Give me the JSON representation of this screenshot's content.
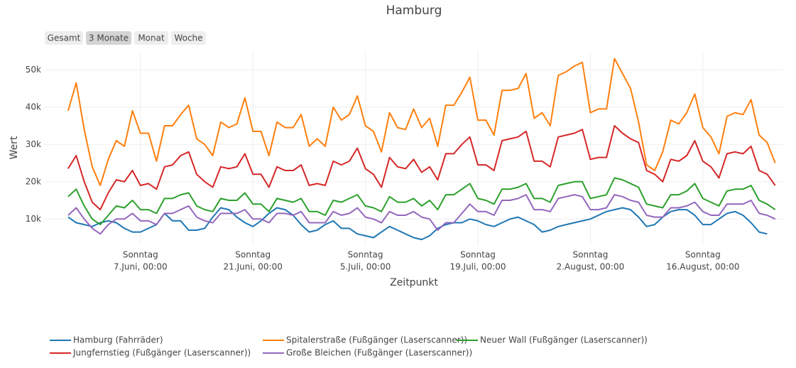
{
  "chart_data": {
    "type": "line",
    "title": "Hamburg",
    "buttons": [
      "Gesamt",
      "3 Monate",
      "Monat",
      "Woche"
    ],
    "active_button": 1,
    "x_label": "Zeitpunkt",
    "y_label": "Wert",
    "x": [
      "05-29",
      "05-30",
      "05-31",
      "06-01",
      "06-02",
      "06-03",
      "06-04",
      "06-05",
      "06-06",
      "06-07",
      "06-08",
      "06-09",
      "06-10",
      "06-11",
      "06-12",
      "06-13",
      "06-14",
      "06-15",
      "06-16",
      "06-17",
      "06-18",
      "06-19",
      "06-20",
      "06-21",
      "06-22",
      "06-23",
      "06-24",
      "06-25",
      "06-26",
      "06-27",
      "06-28",
      "06-29",
      "06-30",
      "07-01",
      "07-02",
      "07-03",
      "07-04",
      "07-05",
      "07-06",
      "07-07",
      "07-08",
      "07-09",
      "07-10",
      "07-11",
      "07-12",
      "07-13",
      "07-14",
      "07-15",
      "07-16",
      "07-17",
      "07-18",
      "07-19",
      "07-20",
      "07-21",
      "07-22",
      "07-23",
      "07-24",
      "07-25",
      "07-26",
      "07-27",
      "07-28",
      "07-29",
      "07-30",
      "07-31",
      "08-01",
      "08-02",
      "08-03",
      "08-04",
      "08-05",
      "08-06",
      "08-07",
      "08-08",
      "08-09",
      "08-10",
      "08-11",
      "08-12",
      "08-13",
      "08-14",
      "08-15",
      "08-16",
      "08-17",
      "08-18",
      "08-19",
      "08-20",
      "08-21",
      "08-22",
      "08-23",
      "08-24",
      "08-25"
    ],
    "xlim": [
      "05-26",
      "08-26"
    ],
    "xticks": [
      {
        "value": "06-07",
        "label": [
          "Sonntag",
          "7.Juni, 00:00"
        ]
      },
      {
        "value": "06-21",
        "label": [
          "Sonntag",
          "21.Juni, 00:00"
        ]
      },
      {
        "value": "07-05",
        "label": [
          "Sonntag",
          "5.Juli, 00:00"
        ]
      },
      {
        "value": "07-19",
        "label": [
          "Sonntag",
          "19.Juli, 00:00"
        ]
      },
      {
        "value": "08-02",
        "label": [
          "Sonntag",
          "2.August, 00:00"
        ]
      },
      {
        "value": "08-16",
        "label": [
          "Sonntag",
          "16.August, 00:00"
        ]
      }
    ],
    "ylim": [
      3000,
      55000
    ],
    "yticks": [
      {
        "value": 10000,
        "label": "10k"
      },
      {
        "value": 20000,
        "label": "20k"
      },
      {
        "value": 30000,
        "label": "30k"
      },
      {
        "value": 40000,
        "label": "40k"
      },
      {
        "value": 50000,
        "label": "50k"
      }
    ],
    "grid": true,
    "legend": "bottom",
    "series": [
      {
        "name": "Hamburg (Fahrräder)",
        "color": "#1f77b4",
        "values": [
          10500,
          9000,
          8500,
          8000,
          9000,
          9500,
          9000,
          7500,
          6500,
          6500,
          7500,
          8500,
          11500,
          9500,
          9500,
          7000,
          7000,
          7500,
          10500,
          13000,
          12500,
          10500,
          9000,
          8000,
          9500,
          11500,
          13000,
          12500,
          11000,
          8500,
          6500,
          7000,
          8500,
          9500,
          7500,
          7500,
          6000,
          5500,
          5000,
          6500,
          8000,
          7000,
          6000,
          5000,
          4500,
          5500,
          7500,
          8500,
          9000,
          9000,
          10000,
          9500,
          8500,
          8000,
          9000,
          10000,
          10500,
          9500,
          8500,
          6500,
          7000,
          8000,
          8500,
          9000,
          9500,
          10000,
          11000,
          12000,
          12500,
          13000,
          12500,
          10500,
          8000,
          8500,
          10500,
          12000,
          12500,
          12500,
          11000,
          8500,
          8500,
          10000,
          11500,
          12000,
          11000,
          9000,
          6500,
          6000,
          null
        ]
      },
      {
        "name": "Spitalerstraße (Fußgänger (Laserscanner))",
        "color": "#ff7f0e",
        "values": [
          39000,
          46500,
          34000,
          24000,
          19000,
          26000,
          31000,
          29500,
          39000,
          33000,
          33000,
          25500,
          35000,
          35000,
          38000,
          40500,
          31500,
          30000,
          27000,
          36000,
          34500,
          35500,
          42500,
          33500,
          33500,
          27000,
          36000,
          34500,
          34500,
          38000,
          29500,
          31500,
          29500,
          40000,
          36500,
          38000,
          43000,
          35000,
          33500,
          28000,
          38500,
          34500,
          34000,
          39500,
          34500,
          37000,
          29500,
          40500,
          40500,
          44000,
          48000,
          36500,
          36500,
          32500,
          44500,
          44500,
          45000,
          49000,
          37000,
          38500,
          35000,
          48500,
          49500,
          51000,
          52000,
          38500,
          39500,
          39500,
          53000,
          49000,
          45000,
          36000,
          24500,
          23000,
          28000,
          36500,
          35500,
          38500,
          43500,
          34500,
          32000,
          27500,
          37500,
          38500,
          38000,
          42000,
          32500,
          30500,
          25000
        ]
      },
      {
        "name": "Neuer Wall (Fußgänger (Laserscanner))",
        "color": "#2ca02c",
        "values": [
          16000,
          18000,
          13500,
          10000,
          8500,
          11000,
          13500,
          13000,
          15000,
          12500,
          12500,
          11500,
          15500,
          15500,
          16500,
          17000,
          13500,
          12500,
          12000,
          15500,
          15000,
          15000,
          17000,
          14000,
          14000,
          12000,
          15500,
          15000,
          14500,
          15500,
          12000,
          12000,
          11000,
          15000,
          14500,
          15500,
          16500,
          13500,
          13000,
          12000,
          16000,
          14500,
          14500,
          15500,
          13500,
          15000,
          12500,
          16500,
          16500,
          18000,
          19500,
          15500,
          15000,
          14000,
          18000,
          18000,
          18500,
          19500,
          15500,
          15500,
          14500,
          19000,
          19500,
          20000,
          20000,
          15500,
          16000,
          16500,
          21000,
          20500,
          19500,
          18500,
          14000,
          13500,
          13000,
          16500,
          16500,
          17500,
          19500,
          15500,
          14500,
          13500,
          17500,
          18000,
          18000,
          19000,
          15000,
          14000,
          12500
        ]
      },
      {
        "name": "Jungfernstieg (Fußgänger (Laserscanner))",
        "color": "#d62728",
        "values": [
          23500,
          27000,
          20000,
          14500,
          12500,
          17000,
          20500,
          20000,
          23000,
          19000,
          19500,
          18000,
          24000,
          24500,
          27000,
          28000,
          22000,
          20000,
          18500,
          24000,
          23500,
          24000,
          27500,
          22000,
          22000,
          18500,
          24000,
          23000,
          23000,
          24500,
          19000,
          19500,
          19000,
          25500,
          24500,
          25500,
          29000,
          23500,
          22000,
          18500,
          26500,
          24000,
          23500,
          26000,
          22500,
          24000,
          20500,
          27500,
          27500,
          30000,
          32000,
          24500,
          24500,
          23000,
          31000,
          31500,
          32000,
          33500,
          25500,
          25500,
          24000,
          32000,
          32500,
          33000,
          34000,
          26000,
          26500,
          26500,
          35000,
          33000,
          31500,
          30500,
          23000,
          22000,
          20000,
          26000,
          25500,
          27000,
          31000,
          25500,
          24000,
          21000,
          27500,
          28000,
          27500,
          29500,
          23000,
          22000,
          19000
        ]
      },
      {
        "name": "Große Bleichen (Fußgänger (Laserscanner))",
        "color": "#9467bd",
        "values": [
          11000,
          13000,
          10000,
          7500,
          6000,
          8500,
          10000,
          10000,
          11500,
          9500,
          9500,
          8500,
          11500,
          11500,
          12500,
          13500,
          10500,
          9500,
          9000,
          11500,
          11500,
          11500,
          12500,
          10000,
          10000,
          9000,
          11500,
          11500,
          11000,
          12000,
          9000,
          9000,
          9000,
          12000,
          11000,
          11500,
          13000,
          10500,
          10000,
          9000,
          12000,
          11000,
          11000,
          12000,
          10500,
          10000,
          7000,
          9000,
          9000,
          11500,
          14000,
          12000,
          12000,
          11000,
          15000,
          15000,
          15500,
          16500,
          12500,
          12500,
          12000,
          15500,
          16000,
          16500,
          16000,
          12500,
          12500,
          13000,
          16500,
          16000,
          15000,
          14500,
          11000,
          10500,
          10500,
          13000,
          13000,
          13500,
          14500,
          12000,
          11000,
          11000,
          14000,
          14000,
          14000,
          15000,
          11500,
          11000,
          10000
        ]
      }
    ]
  }
}
